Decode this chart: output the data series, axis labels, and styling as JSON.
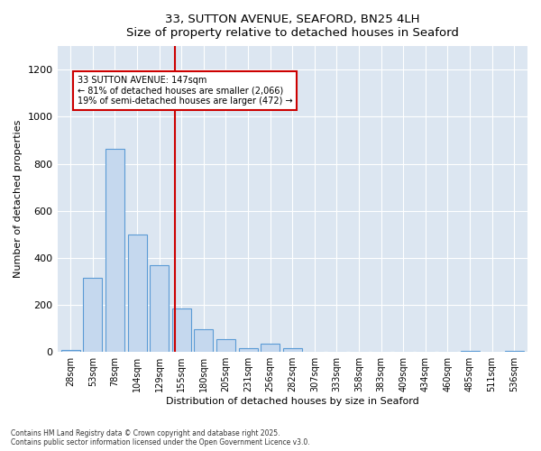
{
  "title_line1": "33, SUTTON AVENUE, SEAFORD, BN25 4LH",
  "title_line2": "Size of property relative to detached houses in Seaford",
  "xlabel": "Distribution of detached houses by size in Seaford",
  "ylabel": "Number of detached properties",
  "annotation_line1": "33 SUTTON AVENUE: 147sqm",
  "annotation_line2": "← 81% of detached houses are smaller (2,066)",
  "annotation_line3": "19% of semi-detached houses are larger (472) →",
  "bar_color": "#c5d8ee",
  "bar_edge_color": "#5b9bd5",
  "vline_color": "#cc0000",
  "background_color": "#dce6f1",
  "plot_bg_color": "#dce6f1",
  "categories": [
    "28sqm",
    "53sqm",
    "78sqm",
    "104sqm",
    "129sqm",
    "155sqm",
    "180sqm",
    "205sqm",
    "231sqm",
    "256sqm",
    "282sqm",
    "307sqm",
    "333sqm",
    "358sqm",
    "383sqm",
    "409sqm",
    "434sqm",
    "460sqm",
    "485sqm",
    "511sqm",
    "536sqm"
  ],
  "values": [
    10,
    315,
    865,
    500,
    370,
    185,
    95,
    55,
    15,
    35,
    15,
    0,
    0,
    0,
    0,
    0,
    0,
    0,
    5,
    0,
    5
  ],
  "ylim": [
    0,
    1300
  ],
  "yticks": [
    0,
    200,
    400,
    600,
    800,
    1000,
    1200
  ],
  "vline_position": 4.72,
  "footer_line1": "Contains HM Land Registry data © Crown copyright and database right 2025.",
  "footer_line2": "Contains public sector information licensed under the Open Government Licence v3.0."
}
